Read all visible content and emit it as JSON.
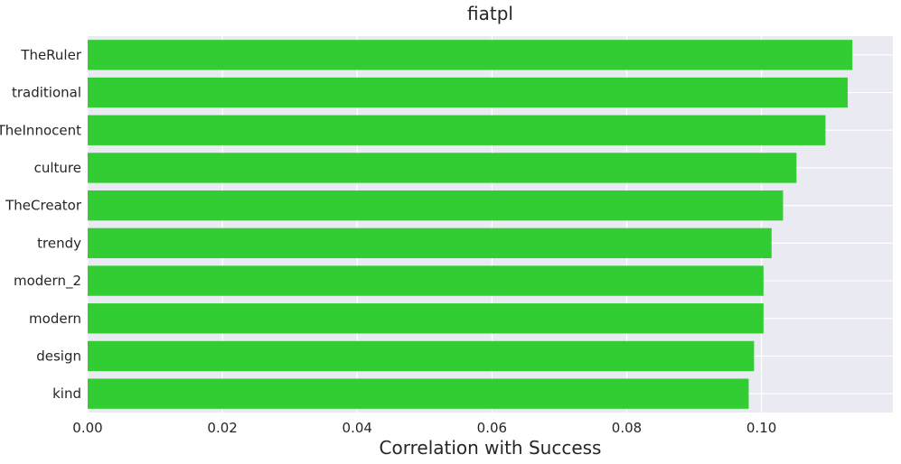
{
  "chart_data": {
    "type": "bar",
    "orientation": "horizontal",
    "title": "fiatpl",
    "xlabel": "Correlation with Success",
    "ylabel": "",
    "categories": [
      "TheRuler",
      "traditional",
      "TheInnocent",
      "culture",
      "TheCreator",
      "trendy",
      "modern_2",
      "modern",
      "design",
      "kind"
    ],
    "values": [
      0.1135,
      0.1128,
      0.1095,
      0.1052,
      0.1032,
      0.1015,
      0.1003,
      0.1003,
      0.0989,
      0.0981
    ],
    "xlim": [
      0,
      0.1195
    ],
    "xticks": [
      0.0,
      0.02,
      0.04,
      0.06,
      0.08,
      0.1
    ],
    "xtick_labels": [
      "0.00",
      "0.02",
      "0.04",
      "0.06",
      "0.08",
      "0.10"
    ],
    "grid": true,
    "colors": {
      "bar": "#32cd32",
      "background": "#eaeaf2",
      "grid": "#ffffff",
      "text": "#262626"
    }
  }
}
